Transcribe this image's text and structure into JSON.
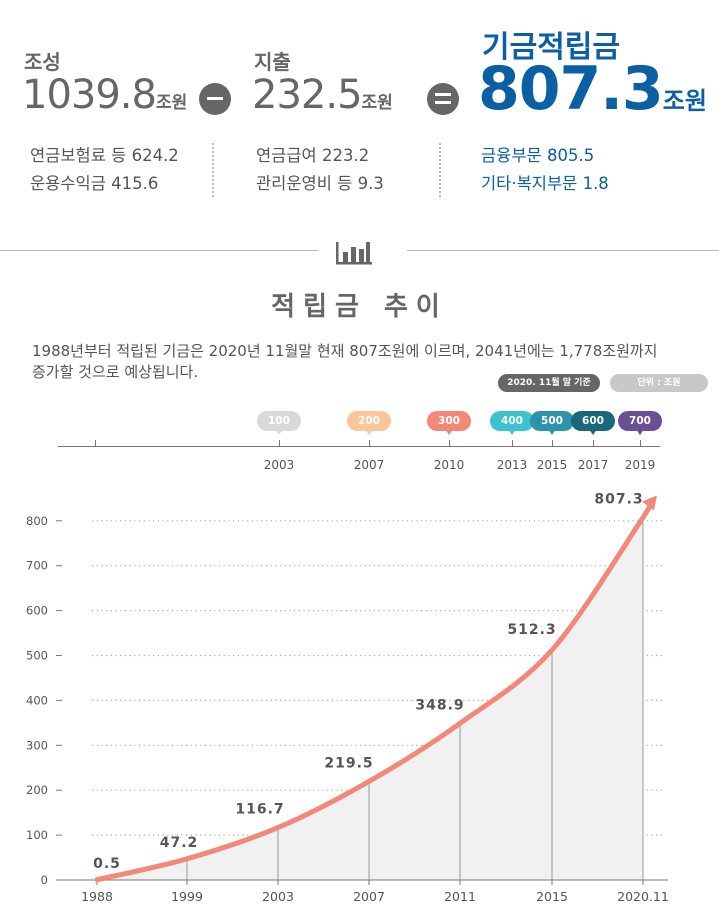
{
  "summary": {
    "income_label": "조성",
    "income_value": "1039.8",
    "unit": "조원",
    "minus_label": "−",
    "expense_label": "지출",
    "expense_value": "232.5",
    "equals_label": "=",
    "reserve_label": "기금적립금",
    "reserve_value": "807.3",
    "income_details": [
      "연금보험료 등 624.2",
      "운용수익금 415.6"
    ],
    "expense_details": [
      "연금급여 223.2",
      "관리운영비 등 9.3"
    ],
    "reserve_details": [
      "금융부문 805.5",
      "기타·복지부문 1.8"
    ]
  },
  "section": {
    "icon": "bar-chart-icon",
    "title": "적립금 추이",
    "description_line1": "1988년부터 적립된 기금은 2020년 11월말 현재 807조원에 이르며, 2041년에는 1,778조원까지",
    "description_line2": "증가할 것으로 예상됩니다.",
    "basis_pill": "2020. 11월 말 기준",
    "unit_pill": "단위 : 조원"
  },
  "timeline": [
    {
      "label": "100",
      "year": "2003",
      "color": "#d9d9d9"
    },
    {
      "label": "200",
      "year": "2007",
      "color": "#fbc59b"
    },
    {
      "label": "300",
      "year": "2010",
      "color": "#f3877a"
    },
    {
      "label": "400",
      "year": "2013",
      "color": "#3ec2cf"
    },
    {
      "label": "500",
      "year": "2015",
      "color": "#2e93a8"
    },
    {
      "label": "600",
      "year": "2017",
      "color": "#1a6779"
    },
    {
      "label": "700",
      "year": "2019",
      "color": "#6a4f96"
    }
  ],
  "colors": {
    "accent_blue": "#0b5fa5",
    "line": "#f3877a",
    "area": "#f1f1f1"
  },
  "chart_data": {
    "type": "line",
    "categories": [
      "1988",
      "1999",
      "2003",
      "2007",
      "2011",
      "2015",
      "2020.11"
    ],
    "values": [
      0.5,
      47.2,
      116.7,
      219.5,
      348.9,
      512.3,
      807.3
    ],
    "value_labels": [
      "0.5",
      "47.2",
      "116.7",
      "219.5",
      "348.9",
      "512.3",
      "807.3"
    ],
    "yticks": [
      "0",
      "100",
      "200",
      "300",
      "400",
      "500",
      "600",
      "700",
      "800"
    ],
    "ylim": [
      0,
      800
    ],
    "grid": true
  }
}
